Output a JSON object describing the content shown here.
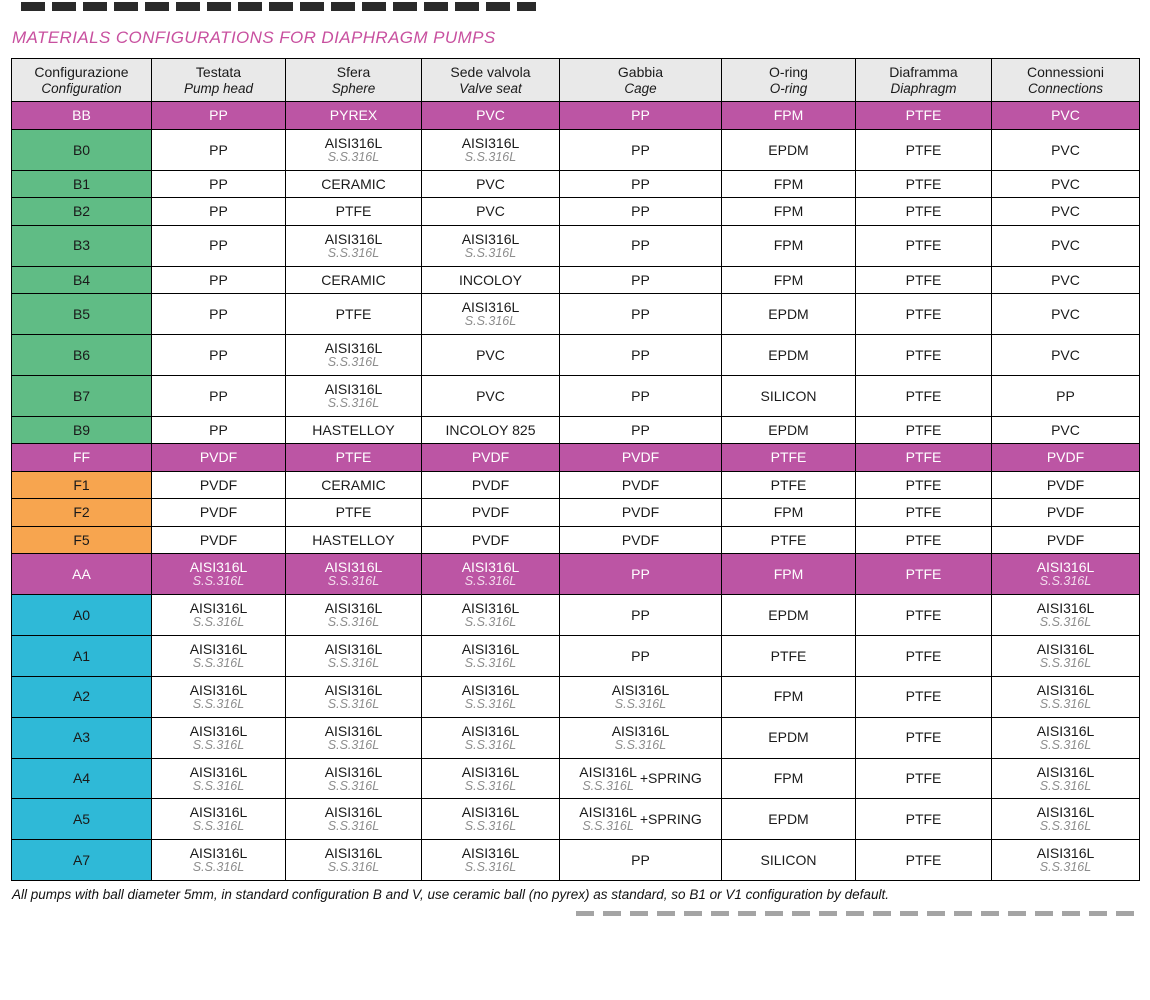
{
  "title": "MATERIALS CONFIGURATIONS FOR DIAPHRAGM PUMPS",
  "footer": "All pumps with ball diameter 5mm, in standard configuration B and V, use ceramic ball (no pyrex) as standard, so B1 or V1 configuration by default.",
  "colors": {
    "title_magenta": "#c8509f",
    "row_magenta": "#bc55a4",
    "config_green": "#60bc85",
    "config_orange": "#f7a54f",
    "config_cyan": "#2fb9d7",
    "header_gray": "#e9e9e9",
    "sub_text_gray": "#8c8c8c"
  },
  "table": {
    "columns": [
      {
        "it": "Configurazione",
        "en": "Configuration"
      },
      {
        "it": "Testata",
        "en": "Pump head"
      },
      {
        "it": "Sfera",
        "en": "Sphere"
      },
      {
        "it": "Sede valvola",
        "en": "Valve seat"
      },
      {
        "it": "Gabbia",
        "en": "Cage"
      },
      {
        "it": "O-ring",
        "en": "O-ring"
      },
      {
        "it": "Diaframma",
        "en": "Diaphragm"
      },
      {
        "it": "Connessioni",
        "en": "Connections"
      }
    ],
    "rows": [
      {
        "config": "BB",
        "style": "magenta",
        "cells": [
          "PP",
          "PYREX",
          "PVC",
          "PP",
          "FPM",
          "PTFE",
          "PVC"
        ]
      },
      {
        "config": "B0",
        "style": "green",
        "cells": [
          "PP",
          {
            "main": "AISI316L",
            "sub": "S.S.316L"
          },
          {
            "main": "AISI316L",
            "sub": "S.S.316L"
          },
          "PP",
          "EPDM",
          "PTFE",
          "PVC"
        ]
      },
      {
        "config": "B1",
        "style": "green",
        "cells": [
          "PP",
          "CERAMIC",
          "PVC",
          "PP",
          "FPM",
          "PTFE",
          "PVC"
        ]
      },
      {
        "config": "B2",
        "style": "green",
        "cells": [
          "PP",
          "PTFE",
          "PVC",
          "PP",
          "FPM",
          "PTFE",
          "PVC"
        ]
      },
      {
        "config": "B3",
        "style": "green",
        "cells": [
          "PP",
          {
            "main": "AISI316L",
            "sub": "S.S.316L"
          },
          {
            "main": "AISI316L",
            "sub": "S.S.316L"
          },
          "PP",
          "FPM",
          "PTFE",
          "PVC"
        ]
      },
      {
        "config": "B4",
        "style": "green",
        "cells": [
          "PP",
          "CERAMIC",
          "INCOLOY",
          "PP",
          "FPM",
          "PTFE",
          "PVC"
        ]
      },
      {
        "config": "B5",
        "style": "green",
        "cells": [
          "PP",
          "PTFE",
          {
            "main": "AISI316L",
            "sub": "S.S.316L"
          },
          "PP",
          "EPDM",
          "PTFE",
          "PVC"
        ]
      },
      {
        "config": "B6",
        "style": "green",
        "cells": [
          "PP",
          {
            "main": "AISI316L",
            "sub": "S.S.316L"
          },
          "PVC",
          "PP",
          "EPDM",
          "PTFE",
          "PVC"
        ]
      },
      {
        "config": "B7",
        "style": "green",
        "cells": [
          "PP",
          {
            "main": "AISI316L",
            "sub": "S.S.316L"
          },
          "PVC",
          "PP",
          "SILICON",
          "PTFE",
          "PP"
        ]
      },
      {
        "config": "B9",
        "style": "green",
        "cells": [
          "PP",
          "HASTELLOY",
          "INCOLOY 825",
          "PP",
          "EPDM",
          "PTFE",
          "PVC"
        ]
      },
      {
        "config": "FF",
        "style": "magenta",
        "cells": [
          "PVDF",
          "PTFE",
          "PVDF",
          "PVDF",
          "PTFE",
          "PTFE",
          "PVDF"
        ]
      },
      {
        "config": "F1",
        "style": "orange",
        "cells": [
          "PVDF",
          "CERAMIC",
          "PVDF",
          "PVDF",
          "PTFE",
          "PTFE",
          "PVDF"
        ]
      },
      {
        "config": "F2",
        "style": "orange",
        "cells": [
          "PVDF",
          "PTFE",
          "PVDF",
          "PVDF",
          "FPM",
          "PTFE",
          "PVDF"
        ]
      },
      {
        "config": "F5",
        "style": "orange",
        "cells": [
          "PVDF",
          "HASTELLOY",
          "PVDF",
          "PVDF",
          "PTFE",
          "PTFE",
          "PVDF"
        ]
      },
      {
        "config": "AA",
        "style": "magenta",
        "cells": [
          {
            "main": "AISI316L",
            "sub": "S.S.316L"
          },
          {
            "main": "AISI316L",
            "sub": "S.S.316L"
          },
          {
            "main": "AISI316L",
            "sub": "S.S.316L"
          },
          "PP",
          "FPM",
          "PTFE",
          {
            "main": "AISI316L",
            "sub": "S.S.316L"
          }
        ]
      },
      {
        "config": "A0",
        "style": "cyan",
        "cells": [
          {
            "main": "AISI316L",
            "sub": "S.S.316L"
          },
          {
            "main": "AISI316L",
            "sub": "S.S.316L"
          },
          {
            "main": "AISI316L",
            "sub": "S.S.316L"
          },
          "PP",
          "EPDM",
          "PTFE",
          {
            "main": "AISI316L",
            "sub": "S.S.316L"
          }
        ]
      },
      {
        "config": "A1",
        "style": "cyan",
        "cells": [
          {
            "main": "AISI316L",
            "sub": "S.S.316L"
          },
          {
            "main": "AISI316L",
            "sub": "S.S.316L"
          },
          {
            "main": "AISI316L",
            "sub": "S.S.316L"
          },
          "PP",
          "PTFE",
          "PTFE",
          {
            "main": "AISI316L",
            "sub": "S.S.316L"
          }
        ]
      },
      {
        "config": "A2",
        "style": "cyan",
        "cells": [
          {
            "main": "AISI316L",
            "sub": "S.S.316L"
          },
          {
            "main": "AISI316L",
            "sub": "S.S.316L"
          },
          {
            "main": "AISI316L",
            "sub": "S.S.316L"
          },
          {
            "main": "AISI316L",
            "sub": "S.S.316L"
          },
          "FPM",
          "PTFE",
          {
            "main": "AISI316L",
            "sub": "S.S.316L"
          }
        ]
      },
      {
        "config": "A3",
        "style": "cyan",
        "cells": [
          {
            "main": "AISI316L",
            "sub": "S.S.316L"
          },
          {
            "main": "AISI316L",
            "sub": "S.S.316L"
          },
          {
            "main": "AISI316L",
            "sub": "S.S.316L"
          },
          {
            "main": "AISI316L",
            "sub": "S.S.316L"
          },
          "EPDM",
          "PTFE",
          {
            "main": "AISI316L",
            "sub": "S.S.316L"
          }
        ]
      },
      {
        "config": "A4",
        "style": "cyan",
        "cells": [
          {
            "main": "AISI316L",
            "sub": "S.S.316L"
          },
          {
            "main": "AISI316L",
            "sub": "S.S.316L"
          },
          {
            "main": "AISI316L",
            "sub": "S.S.316L"
          },
          {
            "main": "AISI316L",
            "sub": "S.S.316L",
            "suffix": "+SPRING"
          },
          "FPM",
          "PTFE",
          {
            "main": "AISI316L",
            "sub": "S.S.316L"
          }
        ]
      },
      {
        "config": "A5",
        "style": "cyan",
        "cells": [
          {
            "main": "AISI316L",
            "sub": "S.S.316L"
          },
          {
            "main": "AISI316L",
            "sub": "S.S.316L"
          },
          {
            "main": "AISI316L",
            "sub": "S.S.316L"
          },
          {
            "main": "AISI316L",
            "sub": "S.S.316L",
            "suffix": "+SPRING"
          },
          "EPDM",
          "PTFE",
          {
            "main": "AISI316L",
            "sub": "S.S.316L"
          }
        ]
      },
      {
        "config": "A7",
        "style": "cyan",
        "cells": [
          {
            "main": "AISI316L",
            "sub": "S.S.316L"
          },
          {
            "main": "AISI316L",
            "sub": "S.S.316L"
          },
          {
            "main": "AISI316L",
            "sub": "S.S.316L"
          },
          "PP",
          "SILICON",
          "PTFE",
          {
            "main": "AISI316L",
            "sub": "S.S.316L"
          }
        ]
      }
    ]
  }
}
